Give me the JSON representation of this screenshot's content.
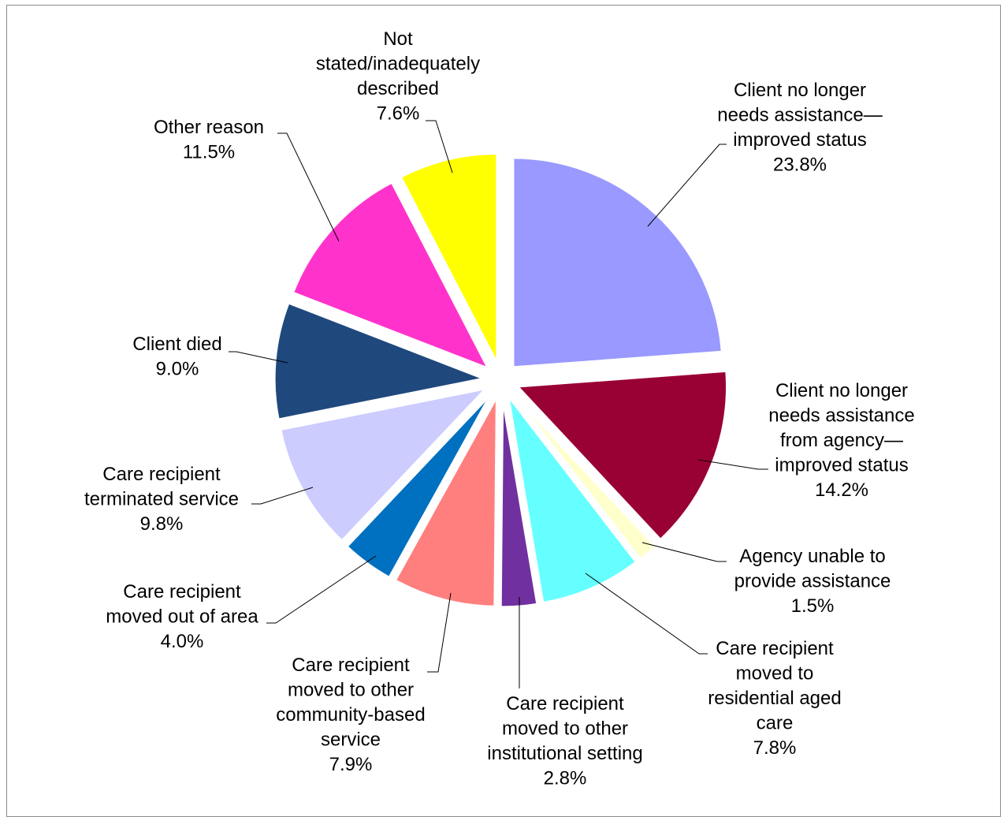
{
  "chart_data": {
    "type": "pie",
    "exploded": true,
    "start": "12 o'clock, clockwise",
    "slices": [
      {
        "label": "Client no longer needs assistance—improved status",
        "value": 23.8,
        "value_label": "23.8%",
        "color": "#9999FF",
        "label_lines": [
          "Client no longer",
          "needs assistance—",
          "improved status",
          "23.8%"
        ]
      },
      {
        "label": "Client no longer needs assistance from agency—improved status",
        "value": 14.2,
        "value_label": "14.2%",
        "color": "#990033",
        "label_lines": [
          "Client no longer",
          "needs assistance",
          "from agency—",
          "improved status",
          "14.2%"
        ]
      },
      {
        "label": "Agency unable to provide assistance",
        "value": 1.5,
        "value_label": "1.5%",
        "color": "#FFFFCC",
        "label_lines": [
          "Agency unable to",
          "provide assistance",
          "1.5%"
        ]
      },
      {
        "label": "Care recipient moved to residential aged care",
        "value": 7.8,
        "value_label": "7.8%",
        "color": "#66FFFF",
        "label_lines": [
          "Care recipient",
          "moved to",
          "residential aged",
          "care",
          "7.8%"
        ]
      },
      {
        "label": "Care recipient moved to other institutional setting",
        "value": 2.8,
        "value_label": "2.8%",
        "color": "#7030A0",
        "label_lines": [
          "Care recipient",
          "moved to other",
          "institutional setting",
          "2.8%"
        ]
      },
      {
        "label": "Care recipient moved to other community-based service",
        "value": 7.9,
        "value_label": "7.9%",
        "color": "#FF7F7F",
        "label_lines": [
          "Care recipient",
          "moved to other",
          "community-based",
          "service",
          "7.9%"
        ]
      },
      {
        "label": "Care recipient moved out of area",
        "value": 4.0,
        "value_label": "4.0%",
        "color": "#0070C0",
        "label_lines": [
          "Care recipient",
          "moved out of area",
          "4.0%"
        ]
      },
      {
        "label": "Care recipient terminated service",
        "value": 9.8,
        "value_label": "9.8%",
        "color": "#CCCCFF",
        "label_lines": [
          "Care recipient",
          "terminated service",
          "9.8%"
        ]
      },
      {
        "label": "Client died",
        "value": 9.0,
        "value_label": "9.0%",
        "color": "#1F497D",
        "label_lines": [
          "Client died",
          "9.0%"
        ]
      },
      {
        "label": "Other reason",
        "value": 11.5,
        "value_label": "11.5%",
        "color": "#FF33CC",
        "label_lines": [
          "Other reason",
          "11.5%"
        ]
      },
      {
        "label": "Not stated/inadequately described",
        "value": 7.6,
        "value_label": "7.6%",
        "color": "#FFFF00",
        "label_lines": [
          "Not",
          "stated/inadequately",
          "described",
          "7.6%"
        ]
      }
    ]
  }
}
